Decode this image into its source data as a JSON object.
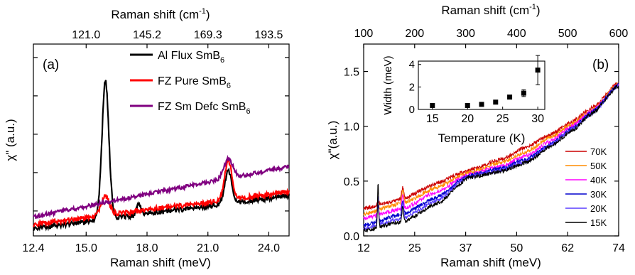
{
  "figure": {
    "panels": [
      {
        "panel_label": "(a)",
        "xlabel_bottom": "Raman shift (meV)",
        "xlabel_top": "Raman shift (cm",
        "xlabel_top_sup": "-1",
        "xlabel_top_close": ")",
        "ylabel": "χ\" (a.u.)",
        "legend": [
          {
            "base": "Al Flux SmB",
            "sub": "6",
            "color": "#000000"
          },
          {
            "base": "FZ Pure SmB",
            "sub": "6",
            "color": "#ff0000"
          },
          {
            "base": "FZ Sm Defc SmB",
            "sub": "6",
            "color": "#800080"
          }
        ]
      },
      {
        "panel_label": "(b)",
        "xlabel_bottom": "Raman shift (meV)",
        "xlabel_top": "Raman shift (cm",
        "xlabel_top_sup": "-1",
        "xlabel_top_close": ")",
        "ylabel": "χ\"(a.u.)",
        "legend": [
          {
            "label": "70K",
            "color": "#cc0000"
          },
          {
            "label": "50K",
            "color": "#ff8c00"
          },
          {
            "label": "40K",
            "color": "#ff00ff"
          },
          {
            "label": "30K",
            "color": "#0000cd"
          },
          {
            "label": "20K",
            "color": "#5a3fff"
          },
          {
            "label": "15K",
            "color": "#000000"
          }
        ]
      },
      {
        "inset_of": "(b)",
        "xlabel": "Temperature (K)",
        "ylabel": "Width (meV)"
      }
    ]
  },
  "chart_data": [
    {
      "type": "line",
      "panel": "(a)",
      "xlabel": "Raman shift (meV)",
      "ylabel": "χ\" (a.u.)",
      "xlim": [
        12.4,
        25.0
      ],
      "x_ticks": [
        "12.4",
        "15.0",
        "18.0",
        "21.0",
        "24.0"
      ],
      "x_tick_values": [
        12.4,
        15.0,
        18.0,
        21.0,
        24.0
      ],
      "top_axis_label": "Raman shift (cm-1)",
      "top_ticks": [
        "121.0",
        "145.2",
        "169.3",
        "193.5"
      ],
      "top_tick_positions_mev": [
        15.0,
        18.0,
        21.0,
        24.0
      ],
      "ylim": [
        0,
        1
      ],
      "y_tick_labels_shown": false,
      "legend_position": "top-right",
      "series": [
        {
          "name": "Al Flux SmB6",
          "color": "#000000",
          "base": 0.04,
          "slope": 0.0135,
          "noise": 0.013,
          "peaks": [
            {
              "center": 15.95,
              "amp": 0.72,
              "width": 0.17
            },
            {
              "center": 17.6,
              "amp": 0.06,
              "width": 0.1
            },
            {
              "center": 22.0,
              "amp": 0.17,
              "width": 0.17
            }
          ]
        },
        {
          "name": "FZ Pure SmB6",
          "color": "#ff0000",
          "base": 0.06,
          "slope": 0.0135,
          "noise": 0.013,
          "peaks": [
            {
              "center": 15.95,
              "amp": 0.1,
              "width": 0.2
            },
            {
              "center": 22.0,
              "amp": 0.2,
              "width": 0.18
            }
          ]
        },
        {
          "name": "FZ Sm Defc SmB6",
          "color": "#800080",
          "base": 0.1,
          "slope": 0.0208,
          "noise": 0.01,
          "peaks": [
            {
              "center": 22.0,
              "amp": 0.1,
              "width": 0.22
            }
          ]
        }
      ]
    },
    {
      "type": "line",
      "panel": "(b)",
      "xlabel": "Raman shift (meV)",
      "ylabel": "χ\"(a.u.)",
      "xlim": [
        12.4,
        74.4
      ],
      "x_ticks": [
        "12",
        "25",
        "37",
        "50",
        "62",
        "74"
      ],
      "x_tick_values": [
        12.4,
        24.8,
        37.2,
        49.6,
        62.0,
        74.4
      ],
      "top_axis_label": "Raman shift (cm-1)",
      "top_ticks": [
        "100",
        "200",
        "300",
        "400",
        "500",
        "600"
      ],
      "top_tick_values_cm1": [
        100,
        200,
        300,
        400,
        500,
        600
      ],
      "ylim": [
        0.0,
        1.75
      ],
      "y_ticks": [
        "0.0",
        "0.5",
        "1.0",
        "1.5"
      ],
      "y_tick_values": [
        0.0,
        0.5,
        1.0,
        1.5
      ],
      "legend_position": "right",
      "series": [
        {
          "name": "70K",
          "color": "#cc0000",
          "curve": [
            [
              12.4,
              0.25
            ],
            [
              22,
              0.34
            ],
            [
              30,
              0.48
            ],
            [
              38,
              0.6
            ],
            [
              46,
              0.7
            ],
            [
              52,
              0.81
            ],
            [
              58,
              0.93
            ],
            [
              63,
              1.04
            ],
            [
              68,
              1.17
            ],
            [
              74.4,
              1.4
            ]
          ],
          "peaks": [
            {
              "center": 15.9,
              "amp": 0.04,
              "width": 0.22
            },
            {
              "center": 21.9,
              "amp": 0.1,
              "width": 0.25
            }
          ]
        },
        {
          "name": "50K",
          "color": "#ff8c00",
          "curve": [
            [
              12.4,
              0.2
            ],
            [
              22,
              0.3
            ],
            [
              30,
              0.44
            ],
            [
              38,
              0.58
            ],
            [
              46,
              0.67
            ],
            [
              52,
              0.77
            ],
            [
              58,
              0.9
            ],
            [
              63,
              1.02
            ],
            [
              68,
              1.15
            ],
            [
              74.4,
              1.39
            ]
          ],
          "peaks": [
            {
              "center": 15.9,
              "amp": 0.05,
              "width": 0.2
            },
            {
              "center": 21.9,
              "amp": 0.12,
              "width": 0.25
            }
          ]
        },
        {
          "name": "40K",
          "color": "#ff00ff",
          "curve": [
            [
              12.4,
              0.16
            ],
            [
              22,
              0.25
            ],
            [
              30,
              0.4
            ],
            [
              38,
              0.56
            ],
            [
              46,
              0.64
            ],
            [
              52,
              0.73
            ],
            [
              58,
              0.87
            ],
            [
              63,
              1.0
            ],
            [
              68,
              1.14
            ],
            [
              74.4,
              1.38
            ]
          ],
          "peaks": [
            {
              "center": 15.9,
              "amp": 0.08,
              "width": 0.2
            },
            {
              "center": 21.9,
              "amp": 0.12,
              "width": 0.22
            }
          ]
        },
        {
          "name": "30K",
          "color": "#0000cd",
          "curve": [
            [
              12.4,
              0.1
            ],
            [
              22,
              0.2
            ],
            [
              30,
              0.35
            ],
            [
              38,
              0.55
            ],
            [
              46,
              0.62
            ],
            [
              52,
              0.7
            ],
            [
              58,
              0.84
            ],
            [
              63,
              0.98
            ],
            [
              68,
              1.13
            ],
            [
              74.4,
              1.38
            ]
          ],
          "peaks": [
            {
              "center": 15.9,
              "amp": 0.15,
              "width": 0.18
            },
            {
              "center": 21.9,
              "amp": 0.13,
              "width": 0.2
            }
          ]
        },
        {
          "name": "20K",
          "color": "#5a3fff",
          "curve": [
            [
              12.4,
              0.07
            ],
            [
              22,
              0.16
            ],
            [
              30,
              0.32
            ],
            [
              38,
              0.54
            ],
            [
              46,
              0.6
            ],
            [
              52,
              0.68
            ],
            [
              58,
              0.83
            ],
            [
              63,
              0.97
            ],
            [
              68,
              1.12
            ],
            [
              74.4,
              1.37
            ]
          ],
          "peaks": [
            {
              "center": 15.9,
              "amp": 0.28,
              "width": 0.16
            },
            {
              "center": 21.9,
              "amp": 0.14,
              "width": 0.2
            }
          ]
        },
        {
          "name": "15K",
          "color": "#000000",
          "curve": [
            [
              12.4,
              0.05
            ],
            [
              22,
              0.13
            ],
            [
              30,
              0.29
            ],
            [
              38,
              0.53
            ],
            [
              46,
              0.59
            ],
            [
              52,
              0.67
            ],
            [
              58,
              0.82
            ],
            [
              63,
              0.96
            ],
            [
              68,
              1.12
            ],
            [
              74.4,
              1.37
            ]
          ],
          "peaks": [
            {
              "center": 15.9,
              "amp": 0.4,
              "width": 0.14
            },
            {
              "center": 21.9,
              "amp": 0.15,
              "width": 0.18
            }
          ]
        }
      ]
    },
    {
      "type": "scatter",
      "panel": "(b) inset",
      "xlabel": "Temperature (K)",
      "ylabel": "Width (meV)",
      "xlim": [
        13,
        31
      ],
      "ylim": [
        0,
        4.3
      ],
      "x_ticks": [
        "15",
        "20",
        "25",
        "30"
      ],
      "x_tick_values": [
        15,
        20,
        25,
        30
      ],
      "y_ticks": [
        "0",
        "2",
        "4"
      ],
      "y_tick_values": [
        0,
        2,
        4
      ],
      "points": [
        {
          "x": 15,
          "y": 0.35,
          "err": 0.05
        },
        {
          "x": 20,
          "y": 0.35,
          "err": 0.05
        },
        {
          "x": 22,
          "y": 0.45,
          "err": 0.05
        },
        {
          "x": 24,
          "y": 0.65,
          "err": 0.08
        },
        {
          "x": 26,
          "y": 1.1,
          "err": 0.12
        },
        {
          "x": 28,
          "y": 1.45,
          "err": 0.3
        },
        {
          "x": 30,
          "y": 3.5,
          "err": 1.3
        }
      ]
    }
  ]
}
